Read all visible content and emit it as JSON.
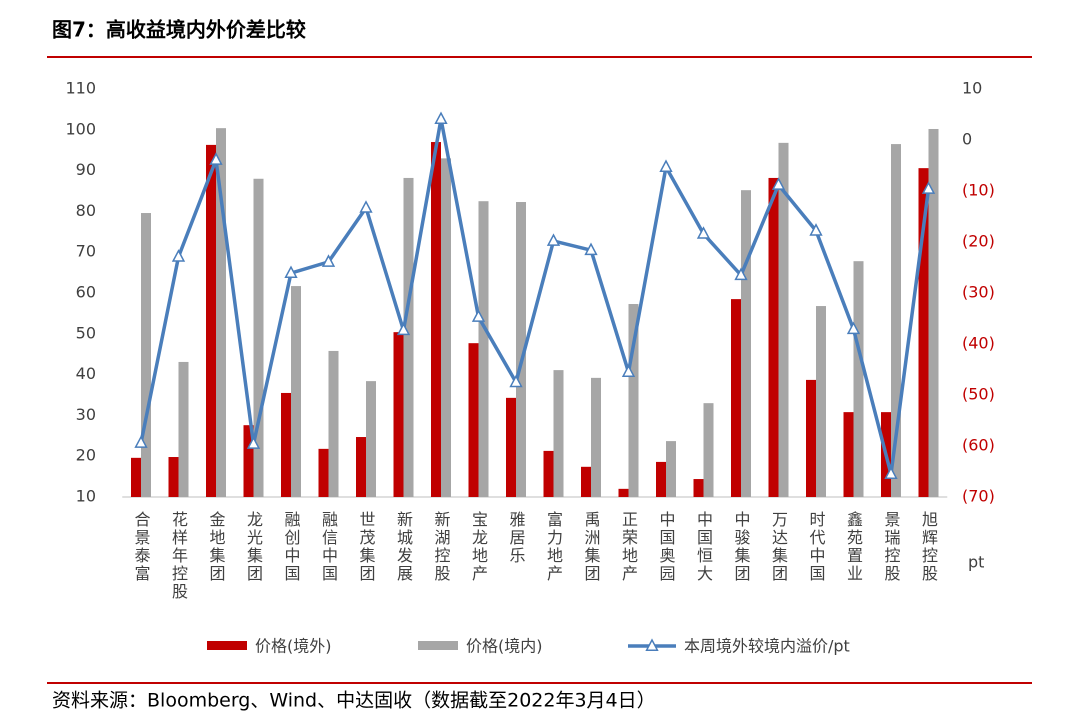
{
  "chart_data": {
    "type": "bar",
    "title": "图7：高收益境内外价差比较",
    "source": "资料来源：Bloomberg、Wind、中达固收（数据截至2022年3月4日）",
    "categories": [
      "合景泰富",
      "花样年控股",
      "金地集团",
      "龙光集团",
      "融创中国",
      "融信中国",
      "世茂集团",
      "新城发展",
      "新湖控股",
      "宝龙地产",
      "雅居乐",
      "富力地产",
      "禹洲集团",
      "正荣地产",
      "中国奥园",
      "中国恒大",
      "中骏集团",
      "万达集团",
      "时代中国",
      "鑫苑置业",
      "景瑞控股",
      "旭辉控股"
    ],
    "series": [
      {
        "name": "价格(境外)",
        "color": "#c00000",
        "type": "bar",
        "values": [
          19.6,
          19.8,
          96.3,
          27.6,
          35.5,
          21.8,
          24.7,
          50.4,
          97,
          47.7,
          34.3,
          21.3,
          17.4,
          12,
          18.6,
          14.4,
          58.5,
          88.2,
          38.7,
          30.8,
          30.8,
          90.6
        ]
      },
      {
        "name": "价格(境内)",
        "color": "#a6a6a6",
        "type": "bar",
        "values": [
          79.6,
          43.1,
          100.4,
          88,
          61.7,
          45.8,
          38.4,
          88.2,
          93,
          82.5,
          82.3,
          41.1,
          39.2,
          57.3,
          23.7,
          33,
          85.2,
          96.8,
          56.8,
          67.8,
          96.5,
          100.2
        ]
      },
      {
        "name": "本周境外较境内溢价/pt",
        "color": "#4a7ebb",
        "type": "line",
        "axis": "y2",
        "values": [
          -59.4,
          -22.9,
          -3.9,
          -59.6,
          -26.1,
          -23.9,
          -13.3,
          -37.3,
          4.1,
          -34.7,
          -47.5,
          -19.8,
          -21.6,
          -45.5,
          -5.3,
          -18.4,
          -26.5,
          -8.8,
          -17.8,
          -37.1,
          -65.5,
          -9.6
        ]
      }
    ],
    "ylim": [
      10,
      110
    ],
    "yticks": [
      10,
      20,
      30,
      40,
      50,
      60,
      70,
      80,
      90,
      100,
      110
    ],
    "y2lim": [
      -70,
      10
    ],
    "y2label": "pt",
    "y2ticks": [
      10,
      0,
      {
        "value": -10,
        "label": "(10)"
      },
      {
        "value": -20,
        "label": "(20)"
      },
      {
        "value": -30,
        "label": "(30)"
      },
      {
        "value": -40,
        "label": "(40)"
      },
      {
        "value": -50,
        "label": "(50)"
      },
      {
        "value": -60,
        "label": "(60)"
      },
      {
        "value": -70,
        "label": "(70)"
      }
    ],
    "negative_tick_color": "#c00000",
    "grid": false
  }
}
